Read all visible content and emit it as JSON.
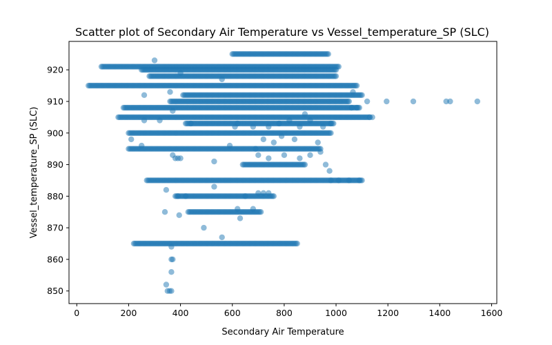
{
  "chart_data": {
    "type": "scatter",
    "title": "Scatter plot of Secondary Air Temperature vs Vessel_temperature_SP (SLC)",
    "xlabel": "Secondary Air Temperature",
    "ylabel": "Vessel_temperature_SP (SLC)",
    "xlim": [
      -30,
      1620
    ],
    "ylim": [
      846,
      929
    ],
    "xticks": [
      0,
      200,
      400,
      600,
      800,
      1000,
      1200,
      1400,
      1600
    ],
    "yticks": [
      850,
      860,
      870,
      880,
      890,
      900,
      910,
      920
    ],
    "grid": false,
    "legend": "none",
    "marker_color": "#1f77b4",
    "marker_alpha": 0.5,
    "bands": [
      {
        "y": 925,
        "x_from": 600,
        "x_to": 970
      },
      {
        "y": 921,
        "x_from": 95,
        "x_to": 1010
      },
      {
        "y": 920,
        "x_from": 250,
        "x_to": 1000
      },
      {
        "y": 918,
        "x_from": 280,
        "x_to": 1000
      },
      {
        "y": 915,
        "x_from": 45,
        "x_to": 1080
      },
      {
        "y": 912,
        "x_from": 410,
        "x_to": 1100
      },
      {
        "y": 910,
        "x_from": 360,
        "x_to": 1050
      },
      {
        "y": 908,
        "x_from": 180,
        "x_to": 1090
      },
      {
        "y": 905,
        "x_from": 160,
        "x_to": 1130
      },
      {
        "y": 903,
        "x_from": 420,
        "x_to": 990
      },
      {
        "y": 900,
        "x_from": 200,
        "x_to": 980
      },
      {
        "y": 895,
        "x_from": 200,
        "x_to": 940
      },
      {
        "y": 890,
        "x_from": 640,
        "x_to": 880
      },
      {
        "y": 885,
        "x_from": 270,
        "x_to": 1100
      },
      {
        "y": 880,
        "x_from": 380,
        "x_to": 760
      },
      {
        "y": 875,
        "x_from": 430,
        "x_to": 710
      },
      {
        "y": 865,
        "x_from": 220,
        "x_to": 850
      }
    ],
    "scattered_points": [
      {
        "x": 1120,
        "y": 910
      },
      {
        "x": 1195,
        "y": 910
      },
      {
        "x": 1298,
        "y": 910
      },
      {
        "x": 1425,
        "y": 910
      },
      {
        "x": 1440,
        "y": 910
      },
      {
        "x": 1545,
        "y": 910
      },
      {
        "x": 1060,
        "y": 908
      },
      {
        "x": 1080,
        "y": 908
      },
      {
        "x": 1065,
        "y": 913
      },
      {
        "x": 1130,
        "y": 905
      },
      {
        "x": 1140,
        "y": 905
      },
      {
        "x": 975,
        "y": 888
      },
      {
        "x": 980,
        "y": 885
      },
      {
        "x": 1010,
        "y": 885
      },
      {
        "x": 1050,
        "y": 885
      },
      {
        "x": 1090,
        "y": 885
      },
      {
        "x": 620,
        "y": 876
      },
      {
        "x": 630,
        "y": 873
      },
      {
        "x": 680,
        "y": 876
      },
      {
        "x": 560,
        "y": 867
      },
      {
        "x": 490,
        "y": 870
      },
      {
        "x": 530,
        "y": 883
      },
      {
        "x": 380,
        "y": 892
      },
      {
        "x": 390,
        "y": 892
      },
      {
        "x": 400,
        "y": 892
      },
      {
        "x": 370,
        "y": 893
      },
      {
        "x": 530,
        "y": 891
      },
      {
        "x": 590,
        "y": 896
      },
      {
        "x": 345,
        "y": 882
      },
      {
        "x": 340,
        "y": 875
      },
      {
        "x": 395,
        "y": 874
      },
      {
        "x": 390,
        "y": 880
      },
      {
        "x": 420,
        "y": 880
      },
      {
        "x": 365,
        "y": 864
      },
      {
        "x": 365,
        "y": 860
      },
      {
        "x": 370,
        "y": 860
      },
      {
        "x": 365,
        "y": 856
      },
      {
        "x": 345,
        "y": 852
      },
      {
        "x": 350,
        "y": 850
      },
      {
        "x": 358,
        "y": 850
      },
      {
        "x": 365,
        "y": 850
      },
      {
        "x": 260,
        "y": 912
      },
      {
        "x": 360,
        "y": 913
      },
      {
        "x": 370,
        "y": 907
      },
      {
        "x": 320,
        "y": 904
      },
      {
        "x": 260,
        "y": 904
      },
      {
        "x": 250,
        "y": 896
      },
      {
        "x": 210,
        "y": 898
      },
      {
        "x": 440,
        "y": 903
      },
      {
        "x": 690,
        "y": 895
      },
      {
        "x": 720,
        "y": 898
      },
      {
        "x": 760,
        "y": 897
      },
      {
        "x": 790,
        "y": 899
      },
      {
        "x": 840,
        "y": 898
      },
      {
        "x": 930,
        "y": 897
      },
      {
        "x": 940,
        "y": 894
      },
      {
        "x": 860,
        "y": 892
      },
      {
        "x": 700,
        "y": 893
      },
      {
        "x": 740,
        "y": 892
      },
      {
        "x": 800,
        "y": 893
      },
      {
        "x": 900,
        "y": 893
      },
      {
        "x": 960,
        "y": 890
      },
      {
        "x": 700,
        "y": 881
      },
      {
        "x": 720,
        "y": 881
      },
      {
        "x": 740,
        "y": 881
      },
      {
        "x": 650,
        "y": 880
      },
      {
        "x": 610,
        "y": 902
      },
      {
        "x": 620,
        "y": 903
      },
      {
        "x": 680,
        "y": 902
      },
      {
        "x": 740,
        "y": 902
      },
      {
        "x": 780,
        "y": 903
      },
      {
        "x": 820,
        "y": 904
      },
      {
        "x": 860,
        "y": 902
      },
      {
        "x": 900,
        "y": 904
      },
      {
        "x": 950,
        "y": 902
      },
      {
        "x": 980,
        "y": 903
      },
      {
        "x": 880,
        "y": 906
      },
      {
        "x": 560,
        "y": 917
      },
      {
        "x": 300,
        "y": 923
      },
      {
        "x": 400,
        "y": 919
      }
    ]
  }
}
